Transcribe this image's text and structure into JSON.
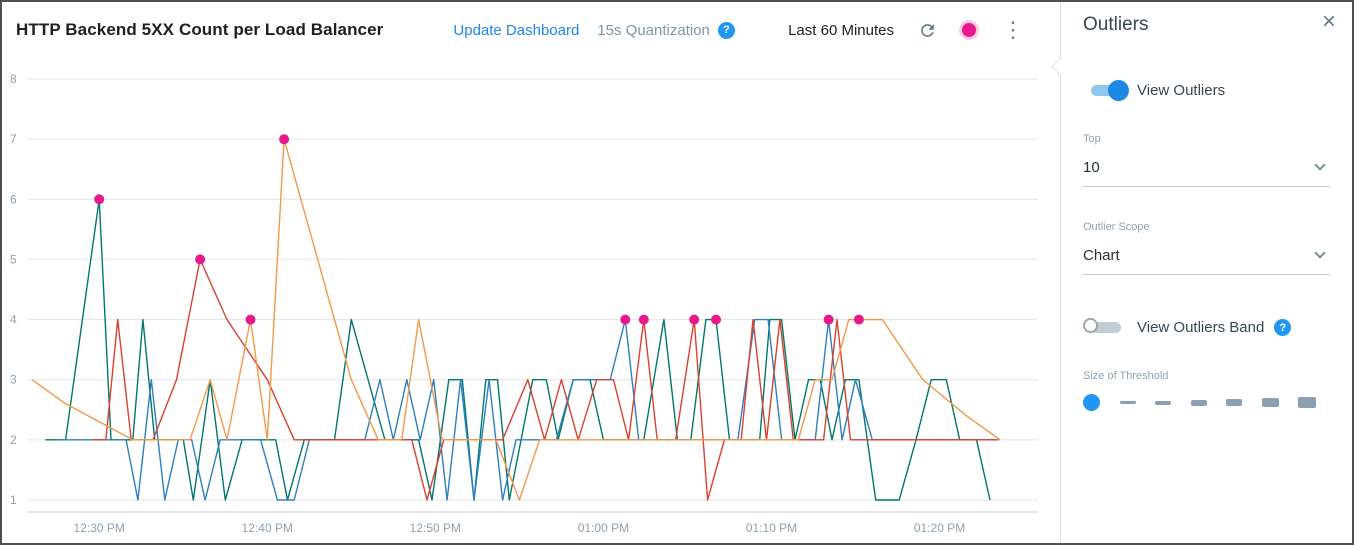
{
  "header": {
    "title": "HTTP Backend 5XX Count per Load Balancer",
    "update_dashboard_label": "Update Dashboard",
    "quantization_label": "15s Quantization",
    "time_range_label": "Last 60 Minutes"
  },
  "panel": {
    "title": "Outliers",
    "close_label": "×",
    "view_outliers": {
      "label": "View Outliers",
      "enabled": true
    },
    "top": {
      "label": "Top",
      "value": "10"
    },
    "scope": {
      "label": "Outlier Scope",
      "value": "Chart"
    },
    "band": {
      "label": "View Outliers Band",
      "enabled": false
    },
    "threshold": {
      "label": "Size of Threshold",
      "bars": [
        {
          "w": 16,
          "h": 3
        },
        {
          "w": 16,
          "h": 4
        },
        {
          "w": 16,
          "h": 6
        },
        {
          "w": 16,
          "h": 7
        },
        {
          "w": 17,
          "h": 9
        },
        {
          "w": 18,
          "h": 11
        }
      ]
    }
  },
  "icons": {
    "help": "?",
    "kebab": "⋮"
  },
  "colors": {
    "accent_blue": "#1e88e5",
    "pink": "#e8198b",
    "muted_blue_gray": "#7c96a8",
    "grid": "#e4e4e4",
    "axis_label": "#8ba2b2"
  },
  "chart_data": {
    "type": "line",
    "title": "HTTP Backend 5XX Count per Load Balancer",
    "xlabel": "",
    "ylabel": "",
    "grid": true,
    "legend": "none",
    "x_unit": "minutes since 12:26 PM",
    "xlim": [
      0,
      59.5
    ],
    "ylim": [
      0.8,
      8.15
    ],
    "y_ticks": [
      1,
      2,
      3,
      4,
      5,
      6,
      7,
      8
    ],
    "x_ticks": [
      {
        "x": 4,
        "label": "12:30 PM"
      },
      {
        "x": 14,
        "label": "12:40 PM"
      },
      {
        "x": 24,
        "label": "12:50 PM"
      },
      {
        "x": 34,
        "label": "01:00 PM"
      },
      {
        "x": 44,
        "label": "01:10 PM"
      },
      {
        "x": 54,
        "label": "01:20 PM"
      }
    ],
    "series": [
      {
        "name": "series-1-teal",
        "color": "#00786b",
        "points": [
          [
            0.8,
            2
          ],
          [
            2,
            2
          ],
          [
            4,
            6
          ],
          [
            4.7,
            2
          ],
          [
            6,
            2
          ],
          [
            6.6,
            4
          ],
          [
            7.3,
            2
          ],
          [
            9,
            2
          ],
          [
            9.6,
            1
          ],
          [
            10.6,
            3
          ],
          [
            11.5,
            1
          ],
          [
            12.5,
            2
          ],
          [
            14.5,
            2
          ],
          [
            15.2,
            1
          ],
          [
            16.2,
            2
          ],
          [
            18,
            2
          ],
          [
            19,
            4
          ],
          [
            20,
            3
          ],
          [
            21,
            2
          ],
          [
            23,
            2
          ],
          [
            23.8,
            1
          ],
          [
            24.8,
            3
          ],
          [
            25.6,
            3
          ],
          [
            26.3,
            1
          ],
          [
            27,
            3
          ],
          [
            27.7,
            3
          ],
          [
            28.4,
            1
          ],
          [
            29.1,
            2
          ],
          [
            29.8,
            3
          ],
          [
            30.6,
            3
          ],
          [
            31.3,
            2
          ],
          [
            32.2,
            3
          ],
          [
            33.2,
            3
          ],
          [
            34,
            2
          ],
          [
            35.2,
            2
          ],
          [
            36.4,
            2
          ],
          [
            37.6,
            4
          ],
          [
            38.4,
            2
          ],
          [
            39.2,
            2
          ],
          [
            40.1,
            4
          ],
          [
            40.7,
            4
          ],
          [
            41.5,
            2
          ],
          [
            42.5,
            2
          ],
          [
            43.3,
            2
          ],
          [
            43.9,
            4
          ],
          [
            44.6,
            4
          ],
          [
            45.4,
            2
          ],
          [
            46.2,
            3
          ],
          [
            46.9,
            3
          ],
          [
            47.6,
            2
          ],
          [
            48.4,
            3
          ],
          [
            49.2,
            3
          ],
          [
            50.2,
            1
          ],
          [
            51.6,
            1
          ],
          [
            52.6,
            2
          ],
          [
            53.5,
            3
          ],
          [
            54.4,
            3
          ],
          [
            55.2,
            2
          ],
          [
            56.2,
            2
          ],
          [
            57,
            1
          ]
        ]
      },
      {
        "name": "series-2-blue",
        "color": "#2e7fc2",
        "points": [
          [
            1.6,
            2
          ],
          [
            3,
            2
          ],
          [
            4.6,
            2
          ],
          [
            5.6,
            2
          ],
          [
            6.3,
            1
          ],
          [
            7.1,
            3
          ],
          [
            7.9,
            1
          ],
          [
            8.7,
            2
          ],
          [
            9.5,
            2
          ],
          [
            10.3,
            1
          ],
          [
            11.2,
            2
          ],
          [
            12.4,
            2
          ],
          [
            13.6,
            2
          ],
          [
            14.6,
            1
          ],
          [
            15.6,
            1
          ],
          [
            16.5,
            2
          ],
          [
            17.6,
            2
          ],
          [
            18.8,
            2
          ],
          [
            19.8,
            2
          ],
          [
            20.7,
            3
          ],
          [
            21.5,
            2
          ],
          [
            22.3,
            3
          ],
          [
            23.1,
            2
          ],
          [
            23.9,
            3
          ],
          [
            24.7,
            1
          ],
          [
            25.5,
            3
          ],
          [
            26.3,
            1
          ],
          [
            27.2,
            3
          ],
          [
            28,
            1
          ],
          [
            28.8,
            2
          ],
          [
            30,
            2
          ],
          [
            31.2,
            2
          ],
          [
            32.2,
            3
          ],
          [
            33.3,
            3
          ],
          [
            34.4,
            3
          ],
          [
            35.3,
            4
          ],
          [
            36.1,
            2
          ],
          [
            37.2,
            2
          ],
          [
            38.4,
            2
          ],
          [
            39.6,
            2
          ],
          [
            40.8,
            2
          ],
          [
            42,
            2
          ],
          [
            43,
            4
          ],
          [
            43.8,
            4
          ],
          [
            44.6,
            2
          ],
          [
            45.6,
            2
          ],
          [
            46.6,
            2
          ],
          [
            47.4,
            4
          ],
          [
            48.2,
            2
          ],
          [
            49,
            3
          ],
          [
            50,
            2
          ],
          [
            51.4,
            2
          ],
          [
            53,
            2
          ],
          [
            54.6,
            2
          ],
          [
            56,
            2
          ],
          [
            57.2,
            2
          ]
        ]
      },
      {
        "name": "series-3-red",
        "color": "#d9412e",
        "points": [
          [
            3.6,
            2
          ],
          [
            4.4,
            2
          ],
          [
            5.1,
            4
          ],
          [
            5.9,
            2
          ],
          [
            7.2,
            2
          ],
          [
            8.6,
            3
          ],
          [
            10,
            5
          ],
          [
            11.6,
            4
          ],
          [
            14,
            3
          ],
          [
            15.6,
            2
          ],
          [
            17.4,
            2
          ],
          [
            19.2,
            2
          ],
          [
            21,
            2
          ],
          [
            22.6,
            2
          ],
          [
            23.5,
            1
          ],
          [
            24.5,
            2
          ],
          [
            26.2,
            2
          ],
          [
            28,
            2
          ],
          [
            29.5,
            3
          ],
          [
            30.5,
            2
          ],
          [
            31.5,
            3
          ],
          [
            32.5,
            2
          ],
          [
            33.6,
            3
          ],
          [
            34.6,
            3
          ],
          [
            35.5,
            2
          ],
          [
            36.4,
            4
          ],
          [
            37.2,
            2
          ],
          [
            38.3,
            2
          ],
          [
            39.4,
            4
          ],
          [
            40.2,
            1
          ],
          [
            41.2,
            2
          ],
          [
            42.2,
            2
          ],
          [
            42.9,
            4
          ],
          [
            43.7,
            2
          ],
          [
            44.5,
            4
          ],
          [
            45.3,
            2
          ],
          [
            46.2,
            2
          ],
          [
            47.1,
            2
          ],
          [
            47.9,
            4
          ],
          [
            48.7,
            2
          ],
          [
            50,
            2
          ],
          [
            52,
            2
          ],
          [
            54,
            2
          ],
          [
            56,
            2
          ],
          [
            57.5,
            2
          ]
        ]
      },
      {
        "name": "series-4-orange",
        "color": "#f2994a",
        "points": [
          [
            0,
            3
          ],
          [
            2,
            2.6
          ],
          [
            4,
            2.3
          ],
          [
            6,
            2
          ],
          [
            8,
            2
          ],
          [
            9.4,
            2
          ],
          [
            10.6,
            3
          ],
          [
            11.6,
            2
          ],
          [
            13,
            4
          ],
          [
            14,
            2
          ],
          [
            15,
            7
          ],
          [
            17,
            5
          ],
          [
            19,
            3
          ],
          [
            20.6,
            2
          ],
          [
            22,
            2
          ],
          [
            23,
            4
          ],
          [
            24.4,
            2
          ],
          [
            26,
            2
          ],
          [
            27.6,
            2
          ],
          [
            29,
            1
          ],
          [
            30.2,
            2
          ],
          [
            32,
            2
          ],
          [
            34,
            2
          ],
          [
            36,
            2
          ],
          [
            38,
            2
          ],
          [
            40,
            2
          ],
          [
            42,
            2
          ],
          [
            44,
            2
          ],
          [
            45.6,
            2
          ],
          [
            46.6,
            3
          ],
          [
            47.6,
            3
          ],
          [
            48.6,
            4
          ],
          [
            50.6,
            4
          ],
          [
            53,
            3
          ],
          [
            55.6,
            2.4
          ],
          [
            57.6,
            2
          ]
        ]
      }
    ],
    "outliers": {
      "color": "#e8198b",
      "points": [
        [
          4,
          6
        ],
        [
          10,
          5
        ],
        [
          13,
          4
        ],
        [
          15,
          7
        ],
        [
          35.3,
          4
        ],
        [
          36.4,
          4
        ],
        [
          39.4,
          4
        ],
        [
          40.7,
          4
        ],
        [
          47.4,
          4
        ],
        [
          49.2,
          4
        ]
      ]
    }
  }
}
